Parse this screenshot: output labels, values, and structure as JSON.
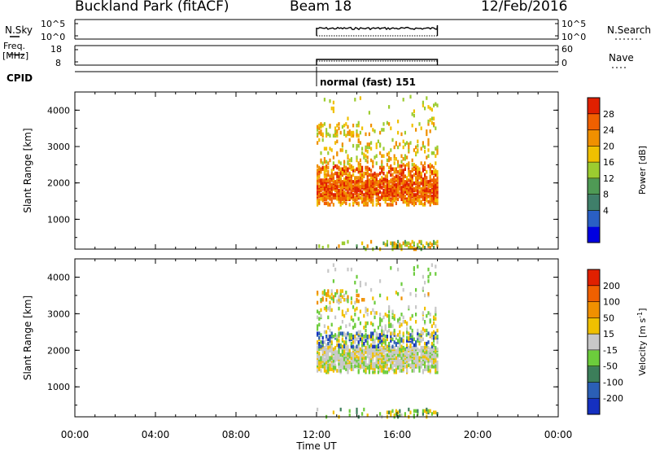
{
  "header": {
    "site": "Buckland Park (fitACF)",
    "beam": "Beam 18",
    "date": "12/Feb/2016"
  },
  "top_panels": {
    "nsky_label": "N.Sky",
    "nsearch_label": "N.Search",
    "noise_ticks": [
      "10^5",
      "10^0"
    ],
    "freq_label_1": "Freq.",
    "freq_label_2": "[MHz]",
    "freq_ticks": [
      "18",
      "8"
    ],
    "nave_label": "Nave",
    "nave_ticks": [
      "60",
      "0"
    ],
    "cpid_label": "CPID",
    "cpid_value": "normal (fast) 151"
  },
  "colors": {
    "power": [
      "#0000e0",
      "#2a5fc4",
      "#3f7f6a",
      "#4f9a55",
      "#9ccc30",
      "#f0c000",
      "#f09000",
      "#f06000",
      "#e02000"
    ],
    "velocity": [
      "#1530c0",
      "#2b5fb5",
      "#3c7e5a",
      "#6ccc3c",
      "#c8c8c8",
      "#f0c000",
      "#f09000",
      "#f06000",
      "#e02000"
    ]
  },
  "chart_data": [
    {
      "type": "heatmap",
      "name": "power",
      "xlabel": "",
      "ylabel": "Slant Range [km]",
      "colorbar_label": "Power [dB]",
      "colorbar_ticks": [
        "28",
        "24",
        "20",
        "16",
        "12",
        "8",
        "4"
      ],
      "x_range": [
        "00:00",
        "24:00"
      ],
      "ylim": [
        180,
        4500
      ],
      "y_ticks": [
        "4000",
        "3000",
        "2000",
        "1000"
      ],
      "data_extent_ut": [
        "12:00",
        "18:00"
      ]
    },
    {
      "type": "heatmap",
      "name": "velocity",
      "xlabel": "Time UT",
      "ylabel": "Slant Range [km]",
      "colorbar_label": "Velocity [m s",
      "colorbar_label_sup": "-1",
      "colorbar_label_end": "]",
      "colorbar_ticks": [
        "200",
        "100",
        "50",
        "15",
        "-15",
        "-50",
        "-100",
        "-200"
      ],
      "x_range": [
        "00:00",
        "24:00"
      ],
      "x_ticks": [
        "00:00",
        "04:00",
        "08:00",
        "12:00",
        "16:00",
        "20:00",
        "00:00"
      ],
      "ylim": [
        180,
        4500
      ],
      "y_ticks": [
        "4000",
        "3000",
        "2000",
        "1000"
      ],
      "data_extent_ut": [
        "12:00",
        "18:00"
      ]
    }
  ]
}
